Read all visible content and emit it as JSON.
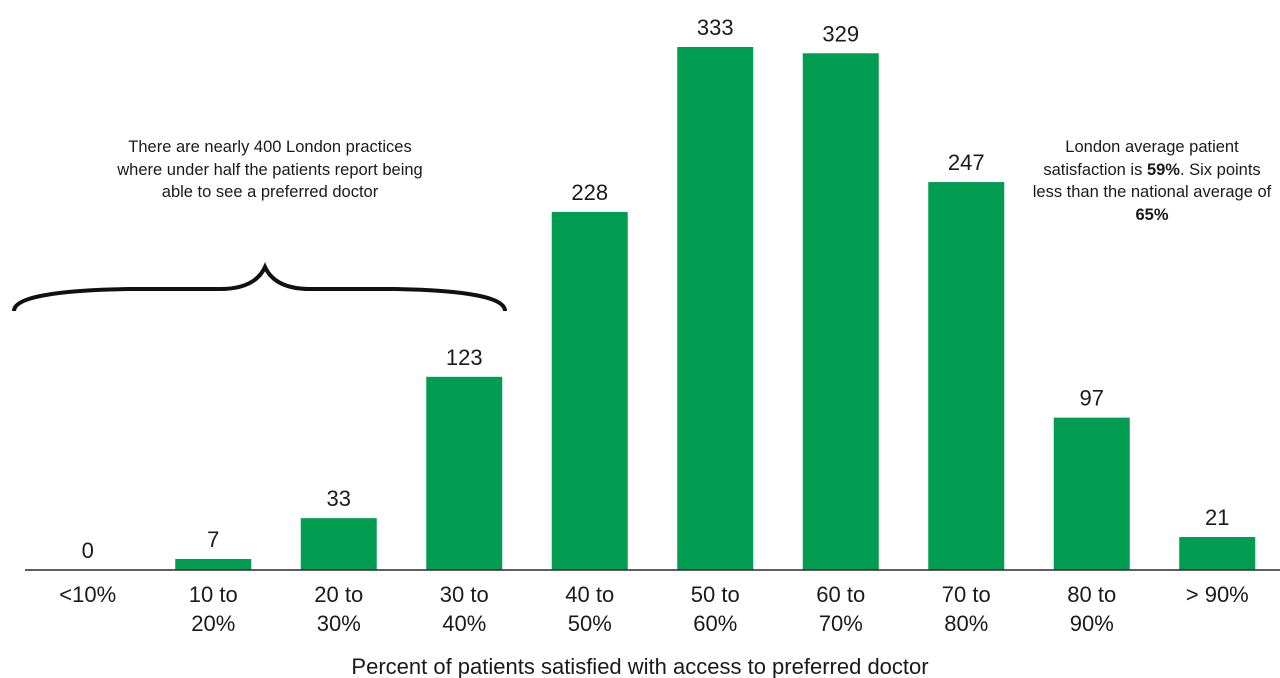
{
  "colors": {
    "bar": "#009c51",
    "axis": "#2a2a2a",
    "text": "#1a1a1a",
    "brace": "#111111"
  },
  "chart_data": {
    "type": "bar",
    "categories": [
      "<10%",
      "10 to 20%",
      "20 to 30%",
      "30 to 40%",
      "40 to 50%",
      "50 to 60%",
      "60 to 70%",
      "70 to 80%",
      "80 to 90%",
      "> 90%"
    ],
    "category_lines": [
      [
        "<10%"
      ],
      [
        "10 to",
        "20%"
      ],
      [
        "20 to",
        "30%"
      ],
      [
        "30 to",
        "40%"
      ],
      [
        "40 to",
        "50%"
      ],
      [
        "50 to",
        "60%"
      ],
      [
        "60 to",
        "70%"
      ],
      [
        "70 to",
        "80%"
      ],
      [
        "80 to",
        "90%"
      ],
      [
        "> 90%"
      ]
    ],
    "values": [
      0,
      7,
      33,
      123,
      228,
      333,
      329,
      247,
      97,
      21
    ],
    "xlabel": "Percent of patients satisfied with access to preferred doctor",
    "ylabel": "",
    "ylim": [
      0,
      333
    ],
    "grid": false,
    "data_labels": true
  },
  "annotations": {
    "left_note": "There are nearly 400 London practices where under half the patients report being able to see a preferred doctor",
    "right_note": {
      "part1": "London average patient satisfaction is ",
      "value1": "59%",
      "part2": ". Six points less than the national average of ",
      "value2": "65%"
    }
  }
}
